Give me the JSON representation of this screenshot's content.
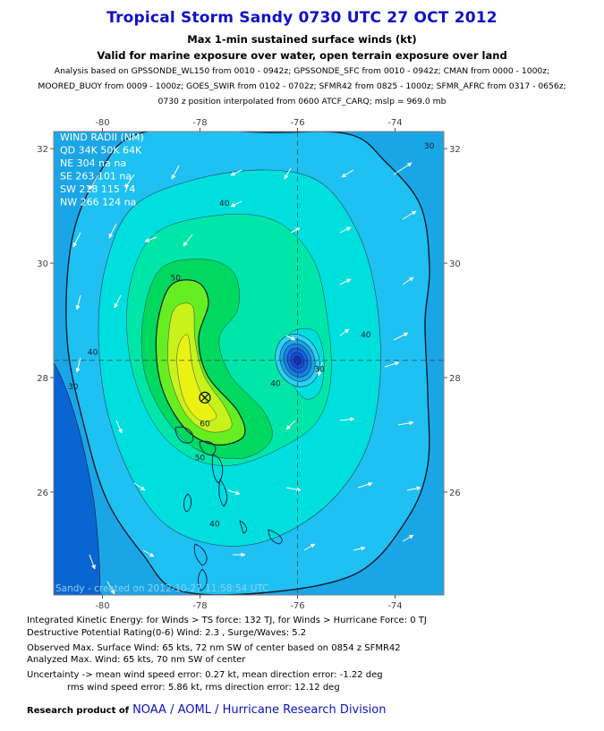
{
  "header": {
    "title": "Tropical Storm Sandy 0730 UTC 27 OCT 2012",
    "subtitle1": "Max 1-min sustained surface winds (kt)",
    "subtitle2": "Valid for marine exposure over water, open terrain exposure over land",
    "analysis_lines": [
      "Analysis based on GPSSONDE_WL150 from 0010 - 0942z; GPSSONDE_SFC from 0010 - 0942z; CMAN from 0000 - 1000z;",
      "MOORED_BUOY from 0009 - 1000z; GOES_SWIR from 0102 - 0702z; SFMR42 from 0825 - 1000z; SFMR_AFRC from 0317 - 0656z;",
      "0730 z position interpolated from 0600 ATCF_CARQ; mslp = 969.0 mb"
    ]
  },
  "chart_data": {
    "type": "contour",
    "title": "Tropical Storm Sandy 0730 UTC 27 OCT 2012",
    "units": "kt",
    "x_ticks": [
      "-80",
      "-78",
      "-76",
      "-74"
    ],
    "y_ticks": [
      "32",
      "30",
      "28",
      "26"
    ],
    "xlim": [
      -81.0,
      -73.0
    ],
    "ylim": [
      24.2,
      32.3
    ],
    "storm_center": {
      "lon": -76.0,
      "lat": 28.3
    },
    "max_wind_location": {
      "lon": -77.9,
      "lat": 27.65
    },
    "contour_labels": [
      {
        "text": "40",
        "lon": -77.5,
        "lat": 31.0
      },
      {
        "text": "40",
        "lon": -74.6,
        "lat": 28.7
      },
      {
        "text": "40",
        "lon": -76.45,
        "lat": 27.85
      },
      {
        "text": "40",
        "lon": -80.2,
        "lat": 28.4
      },
      {
        "text": "40",
        "lon": -77.7,
        "lat": 25.4
      },
      {
        "text": "50",
        "lon": -78.5,
        "lat": 29.7
      },
      {
        "text": "50",
        "lon": -78.0,
        "lat": 26.55
      },
      {
        "text": "60",
        "lon": -77.9,
        "lat": 27.15
      },
      {
        "text": "30",
        "lon": -73.3,
        "lat": 32.0
      },
      {
        "text": "30",
        "lon": -80.6,
        "lat": 27.8
      },
      {
        "text": "30",
        "lon": -75.55,
        "lat": 28.1
      }
    ],
    "wind_radii": {
      "title": "WIND RADII (NM)",
      "header": "QD 34K 50K 64K",
      "rows": [
        "NE 304  na  na",
        "SE 263 101  na",
        "SW 218 115  74",
        "NW 266 124  na"
      ]
    },
    "created_text": "Sandy - created on 2012-10-27 11:58:54 UTC",
    "grid": true,
    "colors": {
      "level_20": "#1aa6e6",
      "level_30": "#1fc0f2",
      "level_40": "#00dede",
      "level_45": "#00e6a8",
      "level_50": "#00d860",
      "level_55": "#66ee22",
      "level_60": "#c8f21a",
      "level_65": "#eaf212",
      "land": "#0a64d2",
      "eye_fill": "#1a4bd8"
    }
  },
  "footer": {
    "ike": "Integrated Kinetic Energy: for Winds > TS force: 132 TJ, for Winds > Hurricane Force: 0 TJ",
    "dpr": "Destructive Potential Rating(0-6)  Wind: 2.3 , Surge/Waves: 5.2",
    "observed": "Observed Max. Surface Wind: 65 kts, 72 nm SW of center based on 0854 z SFMR42",
    "analyzed": "Analyzed Max. Wind: 65 kts, 70 nm  SW of center",
    "uncertainty1": "Uncertainty -> mean wind speed error: 0.27 kt, mean direction error:  -1.22 deg",
    "uncertainty2": "rms wind speed error: 5.86 kt, rms direction error: 12.12 deg",
    "credit_lead": "Research product of",
    "credit_org": "NOAA  /  AOML  /  Hurricane Research Division"
  }
}
